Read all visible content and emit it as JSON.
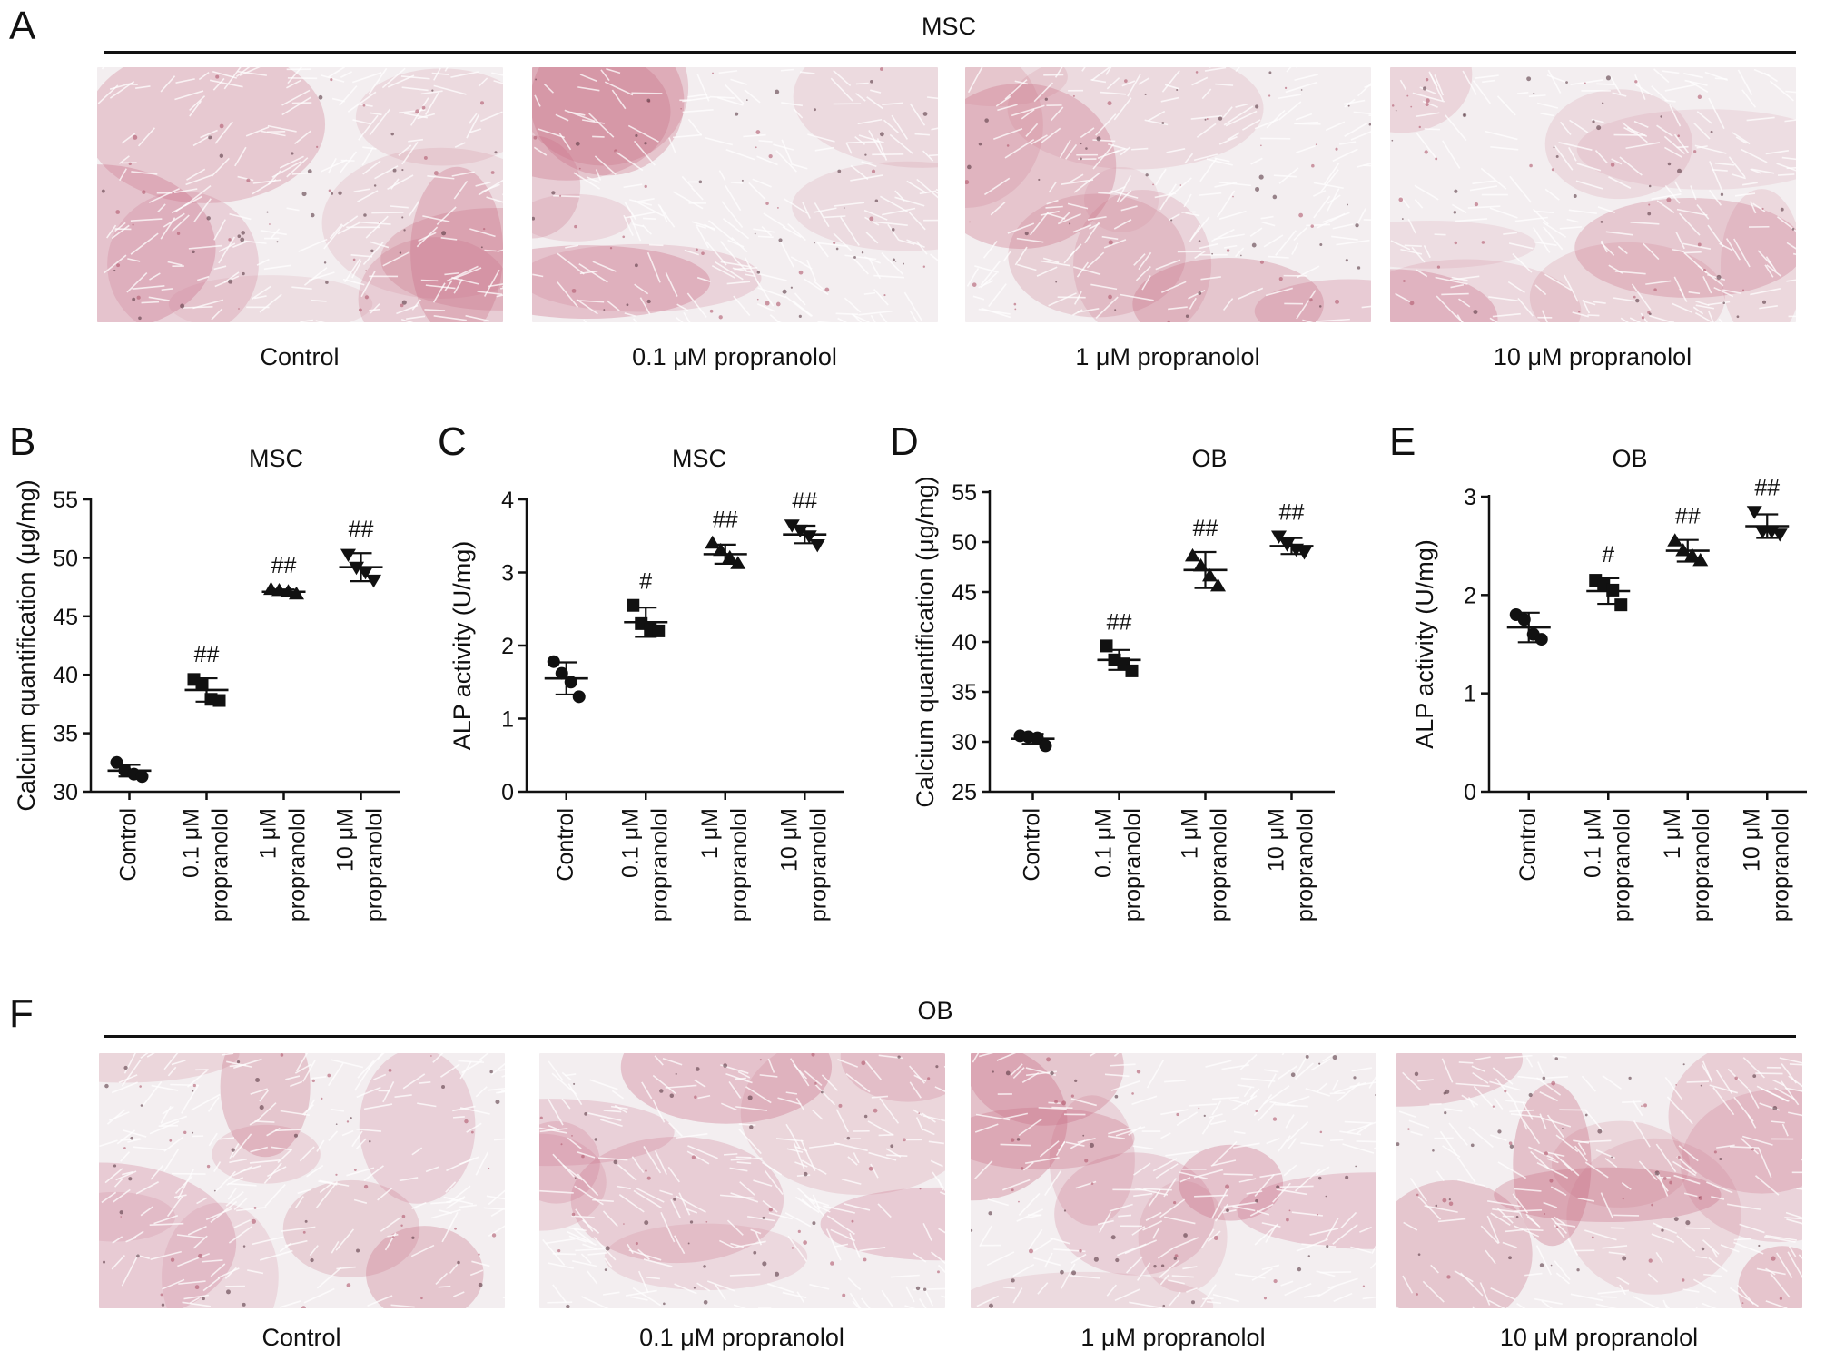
{
  "panel_letters": {
    "a": "A",
    "b": "B",
    "c": "C",
    "d": "D",
    "e": "E",
    "f": "F"
  },
  "group_labels": {
    "top": "MSC",
    "bottom": "OB"
  },
  "image_captions": [
    "Control",
    "0.1 μM propranolol",
    "1 μM propranolol",
    "10 μM propranolol"
  ],
  "colors": {
    "stain": "#c86a82",
    "background": "#f3eef0",
    "marker": "#111111"
  },
  "chart_data": [
    {
      "type": "scatter",
      "panel": "B",
      "title": "MSC",
      "xlabel": "",
      "ylabel": "Calcium quantification (μg/mg)",
      "ylim": [
        30,
        55
      ],
      "yticks": [
        30,
        35,
        40,
        45,
        50,
        55
      ],
      "categories": [
        [
          "Control"
        ],
        [
          "0.1 μM",
          "propranolol"
        ],
        [
          "1 μM",
          "propranolol"
        ],
        [
          "10 μM",
          "propranolol"
        ]
      ],
      "markers": [
        "circle",
        "square",
        "triangle-up",
        "triangle-down"
      ],
      "points": [
        [
          32.5,
          31.8,
          31.5,
          31.3
        ],
        [
          39.6,
          39.2,
          37.9,
          37.8
        ],
        [
          47.3,
          47.2,
          47.1,
          46.9
        ],
        [
          50.3,
          49.2,
          48.8,
          48.1
        ]
      ],
      "mean": [
        31.8,
        38.7,
        47.1,
        49.2
      ],
      "sd": [
        0.5,
        1.0,
        0.2,
        1.2
      ],
      "annotations": [
        "",
        "##",
        "##",
        "##"
      ]
    },
    {
      "type": "scatter",
      "panel": "C",
      "title": "MSC",
      "xlabel": "",
      "ylabel": "ALP activity (U/mg)",
      "ylim": [
        0,
        4
      ],
      "yticks": [
        0,
        1,
        2,
        3,
        4
      ],
      "categories": [
        [
          "Control"
        ],
        [
          "0.1 μM",
          "propranolol"
        ],
        [
          "1 μM",
          "propranolol"
        ],
        [
          "10 μM",
          "propranolol"
        ]
      ],
      "markers": [
        "circle",
        "square",
        "triangle-up",
        "triangle-down"
      ],
      "points": [
        [
          1.78,
          1.62,
          1.5,
          1.3
        ],
        [
          2.55,
          2.3,
          2.22,
          2.2
        ],
        [
          3.4,
          3.3,
          3.2,
          3.12
        ],
        [
          3.65,
          3.58,
          3.5,
          3.38
        ]
      ],
      "mean": [
        1.55,
        2.32,
        3.25,
        3.52
      ],
      "sd": [
        0.22,
        0.2,
        0.13,
        0.12
      ],
      "annotations": [
        "",
        "#",
        "##",
        "##"
      ]
    },
    {
      "type": "scatter",
      "panel": "D",
      "title": "OB",
      "xlabel": "",
      "ylabel": "Calcium quantification (μg/mg)",
      "ylim": [
        25,
        55
      ],
      "yticks": [
        25,
        30,
        35,
        40,
        45,
        50,
        55
      ],
      "categories": [
        [
          "Control"
        ],
        [
          "0.1 μM",
          "propranolol"
        ],
        [
          "1 μM",
          "propranolol"
        ],
        [
          "10 μM",
          "propranolol"
        ]
      ],
      "markers": [
        "circle",
        "square",
        "triangle-up",
        "triangle-down"
      ],
      "points": [
        [
          30.6,
          30.5,
          30.4,
          29.6
        ],
        [
          39.6,
          38.2,
          37.8,
          37.1
        ],
        [
          48.6,
          47.6,
          46.6,
          45.6
        ],
        [
          50.6,
          49.8,
          49.3,
          49.0
        ]
      ],
      "mean": [
        30.3,
        38.2,
        47.2,
        49.6
      ],
      "sd": [
        0.5,
        1.0,
        1.8,
        0.8
      ],
      "annotations": [
        "",
        "##",
        "##",
        "##"
      ]
    },
    {
      "type": "scatter",
      "panel": "E",
      "title": "OB",
      "xlabel": "",
      "ylabel": "ALP activity (U/mg)",
      "ylim": [
        0,
        3
      ],
      "yticks": [
        0,
        1,
        2,
        3
      ],
      "categories": [
        [
          "Control"
        ],
        [
          "0.1 μM",
          "propranolol"
        ],
        [
          "1 μM",
          "propranolol"
        ],
        [
          "10 μM",
          "propranolol"
        ]
      ],
      "markers": [
        "circle",
        "square",
        "triangle-up",
        "triangle-down"
      ],
      "points": [
        [
          1.8,
          1.75,
          1.6,
          1.55
        ],
        [
          2.15,
          2.1,
          2.05,
          1.9
        ],
        [
          2.55,
          2.45,
          2.4,
          2.35
        ],
        [
          2.85,
          2.65,
          2.65,
          2.62
        ]
      ],
      "mean": [
        1.67,
        2.04,
        2.45,
        2.7
      ],
      "sd": [
        0.15,
        0.13,
        0.11,
        0.12
      ],
      "annotations": [
        "",
        "#",
        "##",
        "##"
      ]
    }
  ]
}
